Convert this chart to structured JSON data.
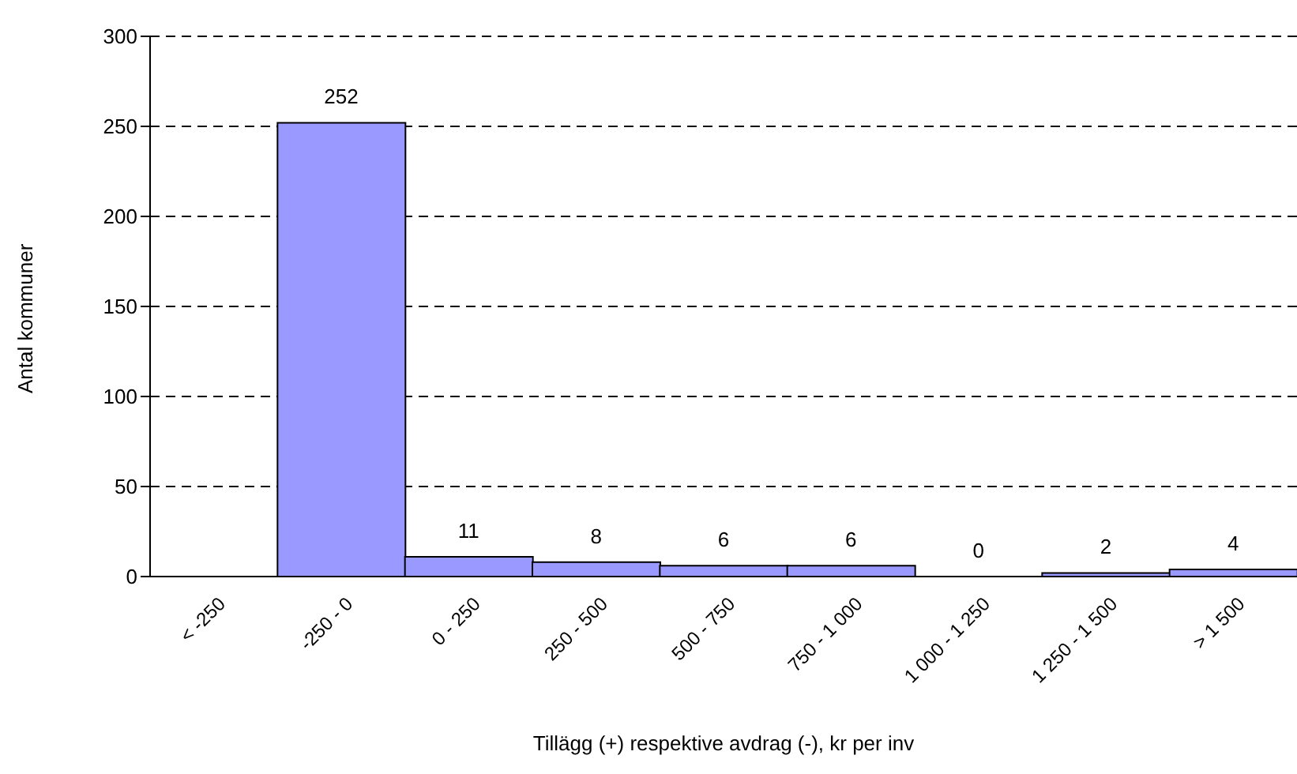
{
  "chart_data": {
    "type": "bar",
    "xlabel": "Tillägg (+) respektive avdrag (-), kr per inv",
    "ylabel": "Antal kommuner",
    "categories": [
      "< -250",
      "-250 - 0",
      "0 - 250",
      "250 - 500",
      "500 - 750",
      "750 - 1 000",
      "1 000 - 1 250",
      "1 250 - 1 500",
      "> 1 500"
    ],
    "values": [
      null,
      252,
      11,
      8,
      6,
      6,
      0,
      2,
      4
    ],
    "color": "#9999ff",
    "ylim": [
      0,
      300
    ],
    "yticks": [
      0,
      50,
      100,
      150,
      200,
      250,
      300
    ],
    "grid": "y",
    "line_style": "dashed",
    "data_labels": true
  }
}
